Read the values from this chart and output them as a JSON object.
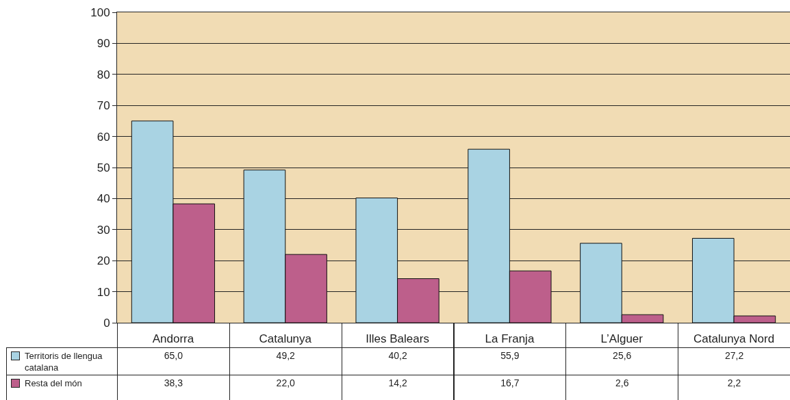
{
  "chart_data": {
    "type": "bar",
    "categories": [
      "Andorra",
      "Catalunya",
      "Illes Balears",
      "La Franja",
      "L’Alguer",
      "Catalunya Nord"
    ],
    "series": [
      {
        "name": "Territoris de llengua catalana",
        "color": "#a9d3e3",
        "values": [
          65.0,
          49.2,
          40.2,
          55.9,
          25.6,
          27.2
        ],
        "value_labels": [
          "65,0",
          "49,2",
          "40,2",
          "55,9",
          "25,6",
          "27,2"
        ]
      },
      {
        "name": "Resta del món",
        "color": "#bd5f8b",
        "values": [
          38.3,
          22.0,
          14.2,
          16.7,
          2.6,
          2.2
        ],
        "value_labels": [
          "38,3",
          "22,0",
          "14,2",
          "16,7",
          "2,6",
          "2,2"
        ]
      }
    ],
    "ylim": [
      0,
      100
    ],
    "yticks": [
      0,
      10,
      20,
      30,
      40,
      50,
      60,
      70,
      80,
      90,
      100
    ],
    "grid": "y",
    "legend": "bottom left"
  }
}
